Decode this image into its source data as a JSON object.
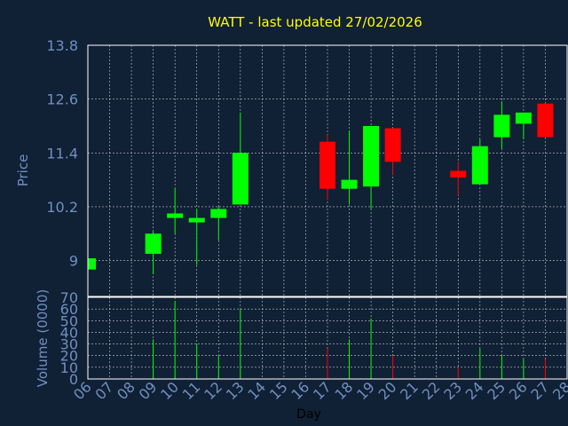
{
  "chart_data": [
    {
      "type": "candlestick",
      "title": "WATT - last updated 27/02/2026",
      "ylabel": "Price",
      "ylim": [
        8.2,
        13.8
      ],
      "yticks": [
        9,
        10.2,
        11.4,
        12.6,
        13.8
      ],
      "ytick_labels": [
        "9",
        "10.2",
        "11.4",
        "12.6",
        "13.8"
      ],
      "grid": true,
      "up_color": "#00ff00",
      "down_color": "#ff0000",
      "candles": [
        {
          "day": "06",
          "open": 8.8,
          "high": 9.05,
          "low": 8.8,
          "close": 9.05
        },
        {
          "day": "09",
          "open": 9.15,
          "high": 9.65,
          "low": 8.7,
          "close": 9.6
        },
        {
          "day": "10",
          "open": 9.95,
          "high": 10.6,
          "low": 9.6,
          "close": 10.05
        },
        {
          "day": "11",
          "open": 9.85,
          "high": 10.15,
          "low": 8.9,
          "close": 9.95
        },
        {
          "day": "12",
          "open": 9.95,
          "high": 10.2,
          "low": 9.45,
          "close": 10.15
        },
        {
          "day": "13",
          "open": 10.25,
          "high": 12.3,
          "low": 10.25,
          "close": 11.4
        },
        {
          "day": "17",
          "open": 11.65,
          "high": 11.8,
          "low": 10.35,
          "close": 10.6
        },
        {
          "day": "18",
          "open": 10.6,
          "high": 11.9,
          "low": 10.25,
          "close": 10.8
        },
        {
          "day": "19",
          "open": 10.65,
          "high": 12.0,
          "low": 10.15,
          "close": 12.0
        },
        {
          "day": "20",
          "open": 11.95,
          "high": 11.95,
          "low": 10.9,
          "close": 11.2
        },
        {
          "day": "23",
          "open": 11.0,
          "high": 11.2,
          "low": 10.45,
          "close": 10.85
        },
        {
          "day": "24",
          "open": 10.7,
          "high": 11.7,
          "low": 10.7,
          "close": 11.55
        },
        {
          "day": "25",
          "open": 11.75,
          "high": 12.55,
          "low": 11.5,
          "close": 12.25
        },
        {
          "day": "26",
          "open": 12.05,
          "high": 12.3,
          "low": 11.7,
          "close": 12.3
        },
        {
          "day": "27",
          "open": 12.5,
          "high": 12.5,
          "low": 11.75,
          "close": 11.75
        }
      ]
    },
    {
      "type": "bar",
      "ylabel": "Volume (0000)",
      "ylim": [
        0,
        70
      ],
      "yticks": [
        0,
        10,
        20,
        30,
        40,
        50,
        60,
        70
      ],
      "ytick_labels": [
        "0",
        "10",
        "20",
        "30",
        "40",
        "50",
        "60",
        "70"
      ],
      "xlabel": "Day",
      "categories": [
        "06",
        "07",
        "08",
        "09",
        "10",
        "11",
        "12",
        "13",
        "14",
        "15",
        "16",
        "17",
        "18",
        "19",
        "20",
        "21",
        "22",
        "23",
        "24",
        "25",
        "26",
        "27",
        "28"
      ],
      "grid": true,
      "bars": [
        {
          "day": "06",
          "value": 0,
          "direction": "up"
        },
        {
          "day": "09",
          "value": 34,
          "direction": "up"
        },
        {
          "day": "10",
          "value": 67,
          "direction": "up"
        },
        {
          "day": "11",
          "value": 30,
          "direction": "up"
        },
        {
          "day": "12",
          "value": 20,
          "direction": "up"
        },
        {
          "day": "13",
          "value": 60,
          "direction": "up"
        },
        {
          "day": "17",
          "value": 26,
          "direction": "down"
        },
        {
          "day": "18",
          "value": 34,
          "direction": "up"
        },
        {
          "day": "19",
          "value": 52,
          "direction": "up"
        },
        {
          "day": "20",
          "value": 20,
          "direction": "down"
        },
        {
          "day": "23",
          "value": 10,
          "direction": "down"
        },
        {
          "day": "24",
          "value": 26,
          "direction": "up"
        },
        {
          "day": "25",
          "value": 20,
          "direction": "up"
        },
        {
          "day": "26",
          "value": 17,
          "direction": "up"
        },
        {
          "day": "27",
          "value": 17,
          "direction": "down"
        }
      ]
    }
  ],
  "colors": {
    "background": "#102035",
    "title": "#ffff00",
    "axis_text": "#7090c0",
    "axis_line": "#ffffff",
    "grid": "#c8c8c8"
  }
}
